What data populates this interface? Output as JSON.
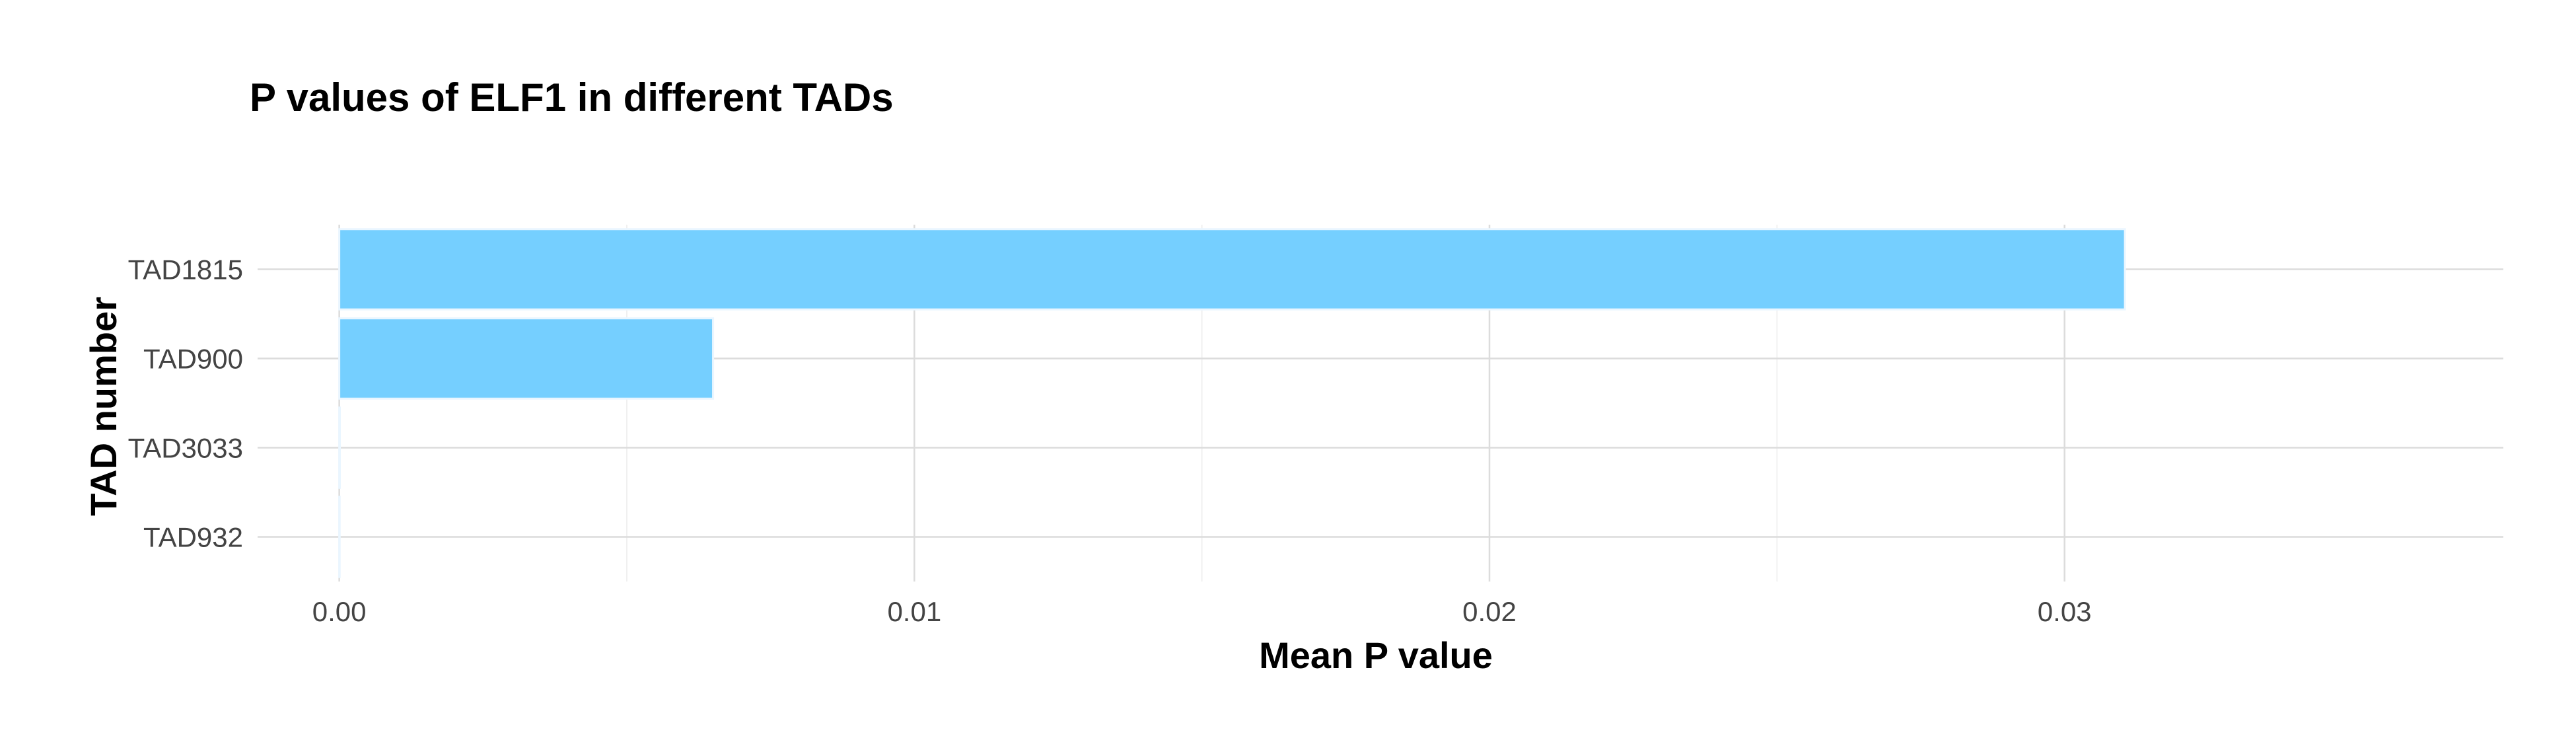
{
  "chart_data": {
    "type": "bar",
    "orientation": "horizontal",
    "title": "P values of ELF1 in different TADs",
    "xlabel": "Mean P value",
    "ylabel": "TAD number",
    "categories": [
      "TAD1815",
      "TAD900",
      "TAD3033",
      "TAD932"
    ],
    "values": [
      0.03105,
      0.0065,
      1e-05,
      5e-06
    ],
    "xlim": [
      -0.00142,
      0.03763
    ],
    "xticks": [
      0.0,
      0.01,
      0.02,
      0.03
    ],
    "xtick_labels": [
      "0.00",
      "0.01",
      "0.02",
      "0.03"
    ],
    "grid": true,
    "legend": "none",
    "bar_color": "#75cfff"
  }
}
